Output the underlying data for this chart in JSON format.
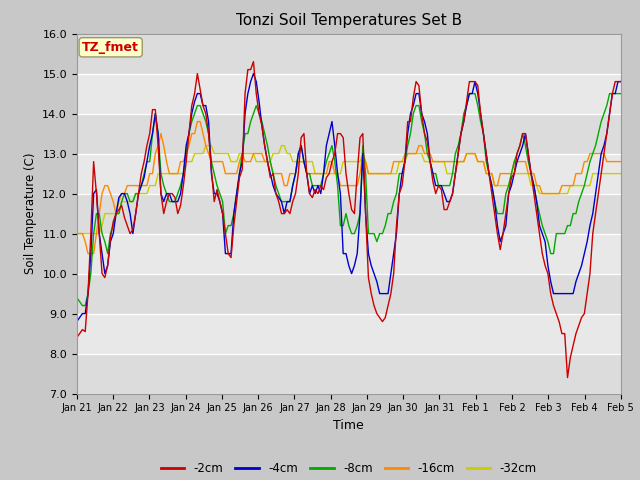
{
  "title": "Tonzi Soil Temperatures Set B",
  "xlabel": "Time",
  "ylabel": "Soil Temperature (C)",
  "ylim": [
    7.0,
    16.0
  ],
  "yticks": [
    7.0,
    8.0,
    9.0,
    10.0,
    11.0,
    12.0,
    13.0,
    14.0,
    15.0,
    16.0
  ],
  "xtick_labels": [
    "Jan 21",
    "Jan 22",
    "Jan 23",
    "Jan 24",
    "Jan 25",
    "Jan 26",
    "Jan 27",
    "Jan 28",
    "Jan 29",
    "Jan 30",
    "Jan 31",
    "Feb 1",
    "Feb 2",
    "Feb 3",
    "Feb 4",
    "Feb 5"
  ],
  "annotation": "TZ_fmet",
  "annotation_color": "#cc0000",
  "annotation_bg": "#ffffcc",
  "colors": {
    "-2cm": "#cc0000",
    "-4cm": "#0000cc",
    "-8cm": "#00aa00",
    "-16cm": "#ff8800",
    "-32cm": "#cccc00"
  },
  "series": {
    "-2cm": [
      8.4,
      8.5,
      8.6,
      8.55,
      9.5,
      11.0,
      12.8,
      12.0,
      11.0,
      10.0,
      9.9,
      10.2,
      10.9,
      11.3,
      11.5,
      11.6,
      11.7,
      11.4,
      11.2,
      11.0,
      11.1,
      11.5,
      12.0,
      12.5,
      12.8,
      13.2,
      13.5,
      14.1,
      14.1,
      13.2,
      12.0,
      11.5,
      11.8,
      12.0,
      12.0,
      11.9,
      11.5,
      11.7,
      12.2,
      12.8,
      13.5,
      14.2,
      14.5,
      15.0,
      14.6,
      14.2,
      14.0,
      13.5,
      12.6,
      11.8,
      12.1,
      11.8,
      11.5,
      11.0,
      10.5,
      10.4,
      11.2,
      11.8,
      12.4,
      12.6,
      14.5,
      15.1,
      15.1,
      15.3,
      14.5,
      14.0,
      13.7,
      13.2,
      12.8,
      12.4,
      12.5,
      12.0,
      11.8,
      11.5,
      11.5,
      11.6,
      11.5,
      11.8,
      12.0,
      12.5,
      13.4,
      13.5,
      12.5,
      12.0,
      11.9,
      12.1,
      12.0,
      12.2,
      12.1,
      12.4,
      12.5,
      12.8,
      13.0,
      13.5,
      13.5,
      13.4,
      12.5,
      12.0,
      11.6,
      11.5,
      12.5,
      13.4,
      13.5,
      11.5,
      9.9,
      9.5,
      9.2,
      9.0,
      8.9,
      8.8,
      8.9,
      9.2,
      9.5,
      10.0,
      11.2,
      12.0,
      12.2,
      12.8,
      13.8,
      13.8,
      14.4,
      14.8,
      14.7,
      14.0,
      13.5,
      13.3,
      12.8,
      12.3,
      12.0,
      12.2,
      12.1,
      11.6,
      11.6,
      11.8,
      12.0,
      12.5,
      13.0,
      13.5,
      13.8,
      14.3,
      14.8,
      14.8,
      14.8,
      14.7,
      14.0,
      13.5,
      13.0,
      12.5,
      12.0,
      11.5,
      11.0,
      10.6,
      11.0,
      11.5,
      12.0,
      12.4,
      12.5,
      13.0,
      13.2,
      13.5,
      13.5,
      13.0,
      12.5,
      12.0,
      11.5,
      11.0,
      10.5,
      10.2,
      10.0,
      9.5,
      9.2,
      9.0,
      8.8,
      8.5,
      8.5,
      7.4,
      7.9,
      8.2,
      8.5,
      8.7,
      8.9,
      9.0,
      9.5,
      10.0,
      11.0,
      11.5,
      12.0,
      12.5,
      13.0,
      13.5,
      14.0,
      14.5,
      14.8,
      14.8,
      14.8
    ],
    "-4cm": [
      8.8,
      8.9,
      9.0,
      9.0,
      9.5,
      10.5,
      12.0,
      12.1,
      11.0,
      10.5,
      10.0,
      10.2,
      10.8,
      11.0,
      11.5,
      11.9,
      12.0,
      12.0,
      11.8,
      11.5,
      11.0,
      11.5,
      12.0,
      12.2,
      12.4,
      12.8,
      13.2,
      13.5,
      14.0,
      13.5,
      12.0,
      11.8,
      12.0,
      12.0,
      11.8,
      11.8,
      11.8,
      12.0,
      12.5,
      13.2,
      13.5,
      14.0,
      14.3,
      14.5,
      14.5,
      14.2,
      14.2,
      13.8,
      12.5,
      12.0,
      12.0,
      11.8,
      11.5,
      10.5,
      10.5,
      10.5,
      11.5,
      12.0,
      12.5,
      12.8,
      14.0,
      14.5,
      14.8,
      15.0,
      14.8,
      14.3,
      13.7,
      13.2,
      12.8,
      12.5,
      12.2,
      12.0,
      11.9,
      11.8,
      11.5,
      11.8,
      11.8,
      12.2,
      12.5,
      13.0,
      13.2,
      12.8,
      12.5,
      12.0,
      12.2,
      12.0,
      12.2,
      12.0,
      12.5,
      13.2,
      13.5,
      13.8,
      13.2,
      12.5,
      12.0,
      10.5,
      10.5,
      10.2,
      10.0,
      10.2,
      10.5,
      11.5,
      13.0,
      11.5,
      10.5,
      10.2,
      10.0,
      9.8,
      9.5,
      9.5,
      9.5,
      9.5,
      10.0,
      10.5,
      11.0,
      12.0,
      12.5,
      12.8,
      13.5,
      14.0,
      14.2,
      14.5,
      14.5,
      14.0,
      13.8,
      13.5,
      12.8,
      12.5,
      12.2,
      12.2,
      12.2,
      12.0,
      11.8,
      11.8,
      12.0,
      12.5,
      13.0,
      13.5,
      13.8,
      14.2,
      14.5,
      14.5,
      14.8,
      14.5,
      14.0,
      13.5,
      13.0,
      12.5,
      12.2,
      11.8,
      11.2,
      10.8,
      11.0,
      11.2,
      12.0,
      12.2,
      12.5,
      12.8,
      13.0,
      13.2,
      13.5,
      13.0,
      12.5,
      12.2,
      11.8,
      11.2,
      11.0,
      10.8,
      10.2,
      9.8,
      9.5,
      9.5,
      9.5,
      9.5,
      9.5,
      9.5,
      9.5,
      9.5,
      9.8,
      10.0,
      10.2,
      10.5,
      10.8,
      11.2,
      11.5,
      12.0,
      12.5,
      13.0,
      13.2,
      13.5,
      14.0,
      14.5,
      14.5,
      14.8,
      14.8
    ],
    "-8cm": [
      9.4,
      9.3,
      9.2,
      9.2,
      9.5,
      10.0,
      11.0,
      11.5,
      11.5,
      11.0,
      10.8,
      10.5,
      11.0,
      11.2,
      11.5,
      11.5,
      11.8,
      12.0,
      12.0,
      11.8,
      11.8,
      12.0,
      12.0,
      12.2,
      12.5,
      12.8,
      12.8,
      13.5,
      14.0,
      13.5,
      12.5,
      12.2,
      12.0,
      11.8,
      11.8,
      11.8,
      12.0,
      12.2,
      12.5,
      13.0,
      13.5,
      13.8,
      14.0,
      14.2,
      14.2,
      14.0,
      13.8,
      13.5,
      12.8,
      12.5,
      12.2,
      12.0,
      11.8,
      11.0,
      11.2,
      11.2,
      11.5,
      12.0,
      12.5,
      13.0,
      13.5,
      13.5,
      13.8,
      14.0,
      14.2,
      14.0,
      13.8,
      13.5,
      13.2,
      12.8,
      12.5,
      12.2,
      12.0,
      11.8,
      11.8,
      11.8,
      11.8,
      12.2,
      12.5,
      13.0,
      13.2,
      12.8,
      12.5,
      12.5,
      12.2,
      12.2,
      12.2,
      12.2,
      12.5,
      12.8,
      13.0,
      13.2,
      12.8,
      12.2,
      11.2,
      11.2,
      11.5,
      11.2,
      11.0,
      11.0,
      11.2,
      11.5,
      13.2,
      12.5,
      11.0,
      11.0,
      11.0,
      10.8,
      11.0,
      11.0,
      11.2,
      11.5,
      11.5,
      11.8,
      12.0,
      12.5,
      12.5,
      12.8,
      13.2,
      13.5,
      14.0,
      14.2,
      14.2,
      13.8,
      13.5,
      13.0,
      12.8,
      12.5,
      12.5,
      12.2,
      12.2,
      12.2,
      12.2,
      12.2,
      12.5,
      13.0,
      13.2,
      13.5,
      14.0,
      14.2,
      14.5,
      14.5,
      14.5,
      14.2,
      13.8,
      13.5,
      12.8,
      12.5,
      12.2,
      11.8,
      11.5,
      11.5,
      11.5,
      12.0,
      12.2,
      12.5,
      12.8,
      13.0,
      13.2,
      13.5,
      13.2,
      12.8,
      12.5,
      12.2,
      11.8,
      11.5,
      11.2,
      11.0,
      10.8,
      10.5,
      10.5,
      11.0,
      11.0,
      11.0,
      11.0,
      11.2,
      11.2,
      11.5,
      11.5,
      11.8,
      12.0,
      12.2,
      12.5,
      12.8,
      13.0,
      13.2,
      13.5,
      13.8,
      14.0,
      14.2,
      14.5,
      14.5,
      14.5,
      14.5,
      14.5
    ],
    "-16cm": [
      11.0,
      11.0,
      11.0,
      10.8,
      10.5,
      10.5,
      10.5,
      11.0,
      11.5,
      12.0,
      12.2,
      12.2,
      12.0,
      11.8,
      11.5,
      11.8,
      12.0,
      12.0,
      12.2,
      12.2,
      12.2,
      12.2,
      12.2,
      12.2,
      12.2,
      12.2,
      12.5,
      12.5,
      13.0,
      13.2,
      13.5,
      13.2,
      12.8,
      12.5,
      12.5,
      12.5,
      12.5,
      12.8,
      12.8,
      13.0,
      13.2,
      13.5,
      13.5,
      13.8,
      13.8,
      13.5,
      13.2,
      13.0,
      12.8,
      12.8,
      12.8,
      12.8,
      12.8,
      12.5,
      12.5,
      12.5,
      12.5,
      12.5,
      12.8,
      13.0,
      12.8,
      12.8,
      12.8,
      13.0,
      13.0,
      13.0,
      13.0,
      12.8,
      12.8,
      12.8,
      12.5,
      12.5,
      12.5,
      12.5,
      12.2,
      12.2,
      12.5,
      12.5,
      12.5,
      12.8,
      12.8,
      12.8,
      12.5,
      12.5,
      12.5,
      12.5,
      12.5,
      12.5,
      12.5,
      12.5,
      12.8,
      12.8,
      12.5,
      12.5,
      12.2,
      12.2,
      12.2,
      12.2,
      12.2,
      12.2,
      12.2,
      12.5,
      13.0,
      12.8,
      12.5,
      12.5,
      12.5,
      12.5,
      12.5,
      12.5,
      12.5,
      12.5,
      12.5,
      12.8,
      12.8,
      12.8,
      12.8,
      12.8,
      13.0,
      13.0,
      13.0,
      13.0,
      13.2,
      13.2,
      13.0,
      13.0,
      13.0,
      12.8,
      12.8,
      12.8,
      12.8,
      12.8,
      12.8,
      12.8,
      12.8,
      12.8,
      12.8,
      12.8,
      12.8,
      13.0,
      13.0,
      13.0,
      13.0,
      12.8,
      12.8,
      12.8,
      12.5,
      12.5,
      12.5,
      12.2,
      12.2,
      12.5,
      12.5,
      12.5,
      12.5,
      12.5,
      12.8,
      12.8,
      12.8,
      12.8,
      12.8,
      12.5,
      12.5,
      12.5,
      12.2,
      12.2,
      12.0,
      12.0,
      12.0,
      12.0,
      12.0,
      12.0,
      12.0,
      12.2,
      12.2,
      12.2,
      12.2,
      12.2,
      12.5,
      12.5,
      12.5,
      12.8,
      12.8,
      13.0,
      13.0,
      13.0,
      13.0,
      13.0,
      13.0,
      12.8,
      12.8,
      12.8,
      12.8,
      12.8,
      12.8
    ],
    "-32cm": [
      11.0,
      11.0,
      11.0,
      11.0,
      11.0,
      11.0,
      11.0,
      11.0,
      11.0,
      11.2,
      11.5,
      11.5,
      11.5,
      11.5,
      11.5,
      11.5,
      11.8,
      11.8,
      11.8,
      11.8,
      11.8,
      12.0,
      12.0,
      12.0,
      12.0,
      12.0,
      12.2,
      12.2,
      12.2,
      12.5,
      12.5,
      12.5,
      12.5,
      12.5,
      12.5,
      12.5,
      12.5,
      12.5,
      12.5,
      12.8,
      12.8,
      12.8,
      13.0,
      13.0,
      13.0,
      13.0,
      13.2,
      13.2,
      13.2,
      13.0,
      13.0,
      13.0,
      13.0,
      13.0,
      13.0,
      12.8,
      12.8,
      12.8,
      13.0,
      13.0,
      13.0,
      13.0,
      13.0,
      13.0,
      12.8,
      12.8,
      12.8,
      12.8,
      12.8,
      12.8,
      13.0,
      13.0,
      13.0,
      13.2,
      13.2,
      13.0,
      13.0,
      12.8,
      12.8,
      12.8,
      12.8,
      12.8,
      12.8,
      12.8,
      12.8,
      12.5,
      12.5,
      12.5,
      12.5,
      12.5,
      12.5,
      12.5,
      12.5,
      12.5,
      12.5,
      12.8,
      12.8,
      12.8,
      12.8,
      12.8,
      12.8,
      12.8,
      13.0,
      12.8,
      12.5,
      12.5,
      12.5,
      12.5,
      12.5,
      12.5,
      12.5,
      12.5,
      12.5,
      12.5,
      12.5,
      12.8,
      12.8,
      13.0,
      13.0,
      13.0,
      13.0,
      13.0,
      13.0,
      13.0,
      12.8,
      12.8,
      12.8,
      12.8,
      12.8,
      12.8,
      12.8,
      12.8,
      12.5,
      12.5,
      12.5,
      12.5,
      12.8,
      12.8,
      12.8,
      13.0,
      13.0,
      13.0,
      13.0,
      12.8,
      12.8,
      12.8,
      12.5,
      12.5,
      12.5,
      12.2,
      12.2,
      12.2,
      12.2,
      12.2,
      12.2,
      12.5,
      12.5,
      12.5,
      12.5,
      12.5,
      12.5,
      12.5,
      12.2,
      12.2,
      12.2,
      12.0,
      12.0,
      12.0,
      12.0,
      12.0,
      12.0,
      12.0,
      12.0,
      12.0,
      12.0,
      12.0,
      12.2,
      12.2,
      12.2,
      12.2,
      12.2,
      12.2,
      12.2,
      12.2,
      12.5,
      12.5,
      12.5,
      12.5,
      12.5,
      12.5,
      12.5,
      12.5,
      12.5,
      12.5,
      12.5
    ]
  }
}
